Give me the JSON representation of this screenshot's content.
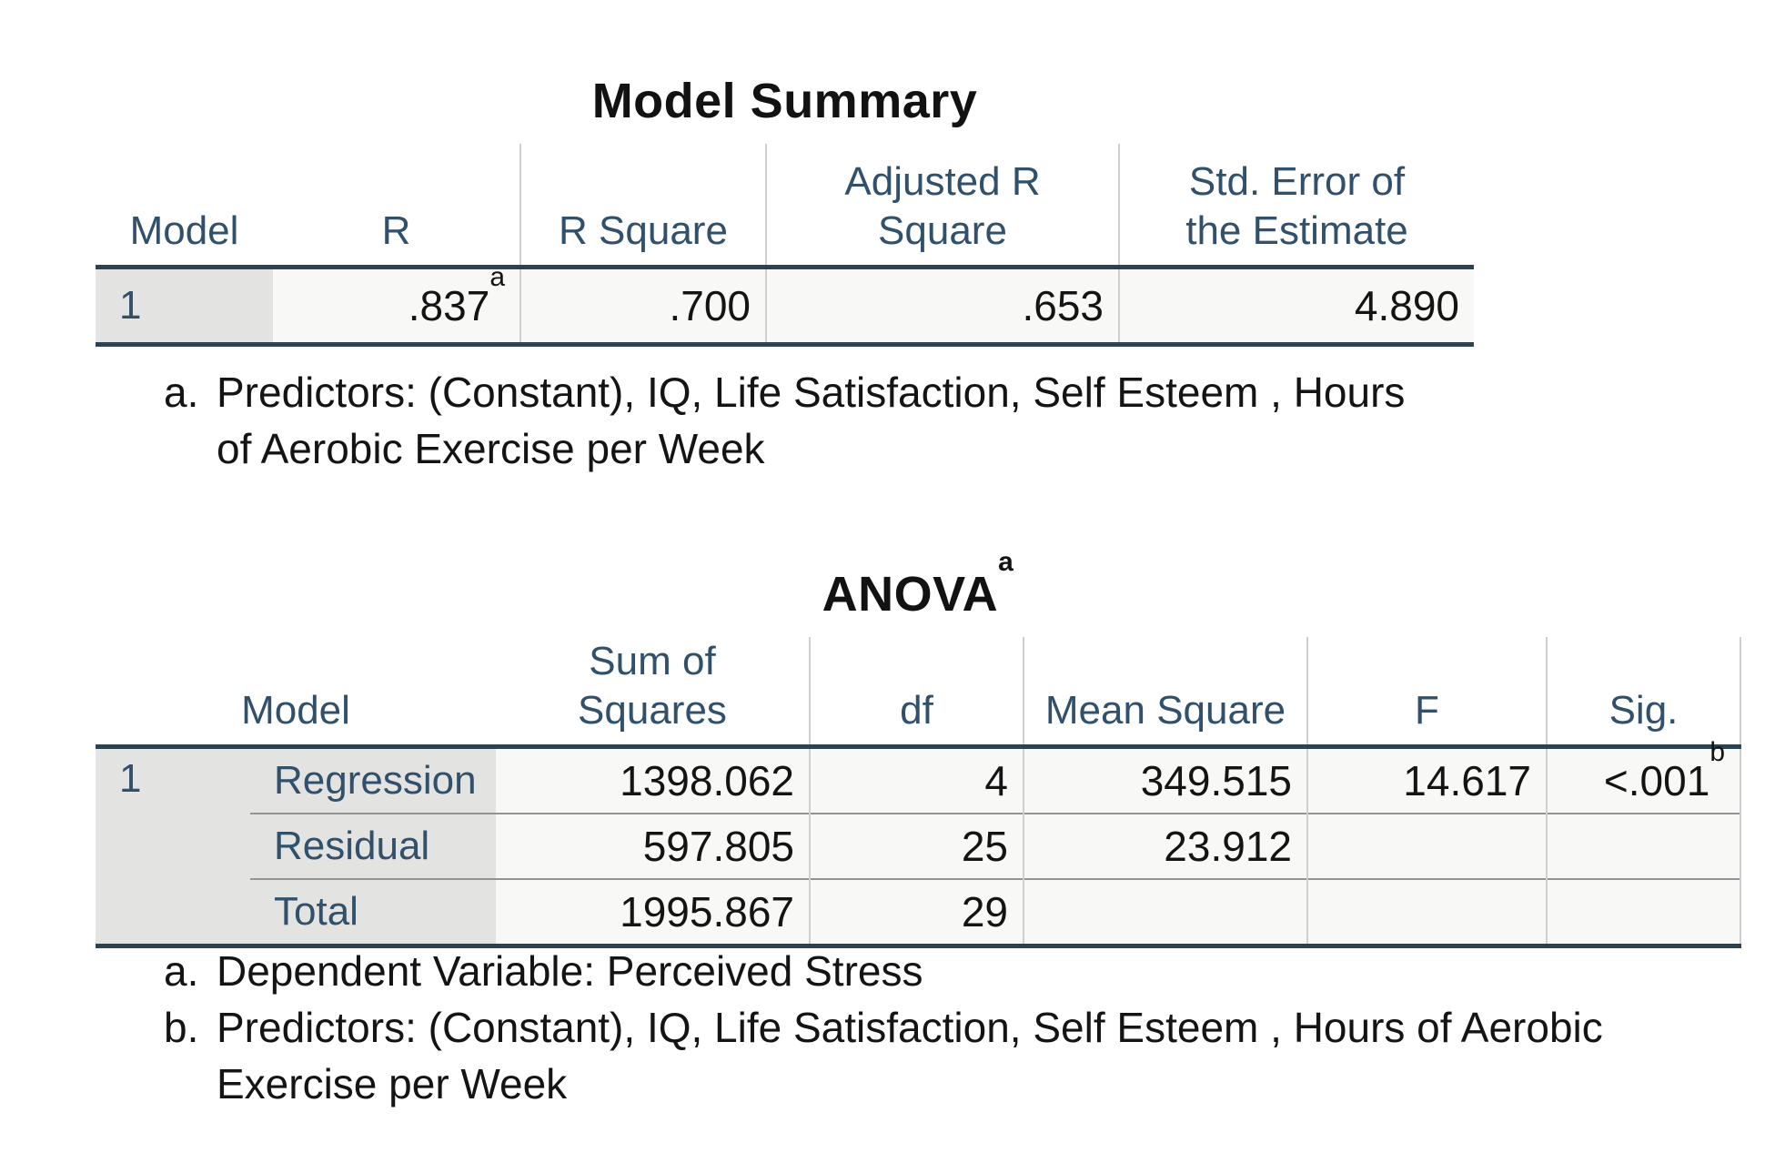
{
  "model_summary": {
    "title": "Model Summary",
    "columns": {
      "model": "Model",
      "r": "R",
      "r_square": "R Square",
      "adjusted_r_square": "Adjusted R Square",
      "std_error": "Std. Error of the Estimate"
    },
    "row": {
      "model": "1",
      "r": ".837",
      "r_sup": "a",
      "r_square": ".700",
      "adjusted_r_square": ".653",
      "std_error": "4.890"
    },
    "footnote_a": {
      "marker": "a.",
      "text": "Predictors: (Constant), IQ, Life Satisfaction, Self Esteem , Hours of Aerobic Exercise per Week"
    }
  },
  "anova": {
    "title": "ANOVA",
    "title_sup": "a",
    "columns": {
      "model": "Model",
      "sum_of_squares": "Sum of Squares",
      "df": "df",
      "mean_square": "Mean Square",
      "f": "F",
      "sig": "Sig."
    },
    "model_number": "1",
    "rows": [
      {
        "label": "Regression",
        "sum_of_squares": "1398.062",
        "df": "4",
        "mean_square": "349.515",
        "f": "14.617",
        "sig": "<.001",
        "sig_sup": "b"
      },
      {
        "label": "Residual",
        "sum_of_squares": "597.805",
        "df": "25",
        "mean_square": "23.912",
        "f": "",
        "sig": "",
        "sig_sup": ""
      },
      {
        "label": "Total",
        "sum_of_squares": "1995.867",
        "df": "29",
        "mean_square": "",
        "f": "",
        "sig": "",
        "sig_sup": ""
      }
    ],
    "footnote_a": {
      "marker": "a.",
      "text": "Dependent Variable: Perceived Stress"
    },
    "footnote_b": {
      "marker": "b.",
      "text": "Predictors: (Constant), IQ, Life Satisfaction, Self Esteem , Hours of Aerobic Exercise per Week"
    }
  },
  "colors": {
    "header_text": "#31506b",
    "heavy_rule": "#2b4252",
    "light_rule": "#cfcfcf",
    "row_separator": "#949494",
    "row_header_bg": "#e3e3e2",
    "cell_bg": "#f8f8f7"
  }
}
